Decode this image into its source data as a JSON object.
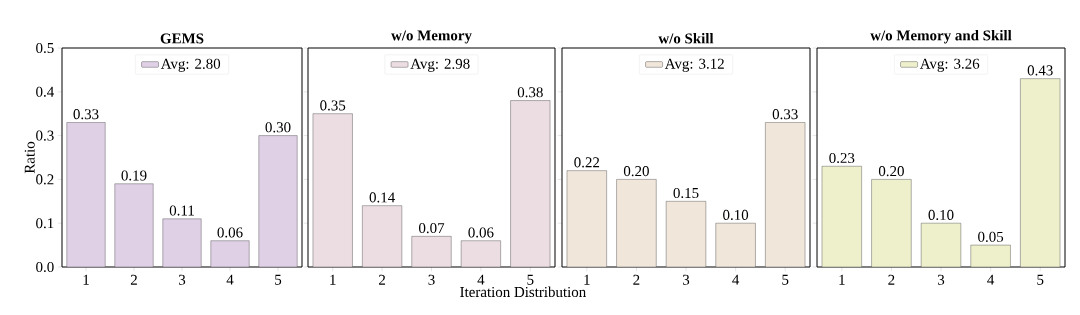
{
  "chart_data": [
    {
      "type": "bar",
      "title": "GEMS",
      "ylabel": "Ratio",
      "categories": [
        "1",
        "2",
        "3",
        "4",
        "5"
      ],
      "series": [
        {
          "name": "Avg: 2.80",
          "color": "#e0d0e6",
          "values": [
            0.33,
            0.19,
            0.11,
            0.06,
            0.3
          ],
          "value_labels": [
            "0.33",
            "0.19",
            "0.11",
            "0.06",
            "0.30"
          ]
        }
      ],
      "ylim": [
        0,
        0.5
      ],
      "yticks": [
        {
          "value": 0,
          "label": "0.0"
        },
        {
          "value": 0.1,
          "label": "0.1"
        },
        {
          "value": 0.2,
          "label": "0.2"
        },
        {
          "value": 0.3,
          "label": "0.3"
        },
        {
          "value": 0.4,
          "label": "0.4"
        },
        {
          "value": 0.5,
          "label": "0.5"
        }
      ],
      "legend": "top"
    },
    {
      "type": "bar",
      "title": "w/o Memory",
      "xlabel": "Iteration Distribution",
      "categories": [
        "1",
        "2",
        "3",
        "4",
        "5"
      ],
      "series": [
        {
          "name": "Avg: 2.98",
          "color": "#ecdde3",
          "values": [
            0.35,
            0.14,
            0.07,
            0.06,
            0.38
          ],
          "value_labels": [
            "0.35",
            "0.14",
            "0.07",
            "0.06",
            "0.38"
          ]
        }
      ],
      "ylim": [
        0,
        0.5
      ],
      "yticks": [
        0,
        0.1,
        0.2,
        0.3,
        0.4,
        0.5
      ],
      "tick_labels": "x",
      "legend": "top"
    },
    {
      "type": "bar",
      "title": "w/o Skill",
      "categories": [
        "1",
        "2",
        "3",
        "4",
        "5"
      ],
      "series": [
        {
          "name": "Avg: 3.12",
          "color": "#f1e6da",
          "values": [
            0.22,
            0.2,
            0.15,
            0.1,
            0.33
          ],
          "value_labels": [
            "0.22",
            "0.20",
            "0.15",
            "0.10",
            "0.33"
          ]
        }
      ],
      "ylim": [
        0,
        0.5
      ],
      "yticks": [
        0,
        0.1,
        0.2,
        0.3,
        0.4,
        0.5
      ],
      "tick_labels": "x",
      "legend": "top"
    },
    {
      "type": "bar",
      "title": "w/o Memory and Skill",
      "categories": [
        "1",
        "2",
        "3",
        "4",
        "5"
      ],
      "series": [
        {
          "name": "Avg: 3.26",
          "color": "#eef0cc",
          "values": [
            0.23,
            0.2,
            0.1,
            0.05,
            0.43
          ],
          "value_labels": [
            "0.23",
            "0.20",
            "0.10",
            "0.05",
            "0.43"
          ]
        }
      ],
      "ylim": [
        0,
        0.5
      ],
      "yticks": [
        0,
        0.1,
        0.2,
        0.3,
        0.4,
        0.5
      ],
      "tick_labels": "x",
      "legend": "top"
    }
  ]
}
